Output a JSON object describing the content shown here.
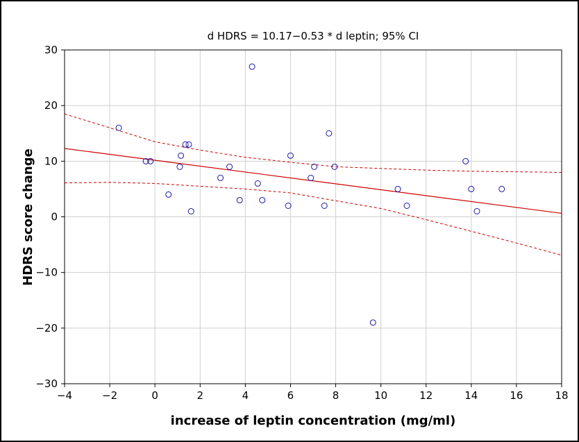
{
  "chart_data": {
    "type": "scatter",
    "title": "d HDRS = 10.17−0.53 * d leptin; 95% CI",
    "xlabel": "increase of leptin concentration (mg/ml)",
    "ylabel": "HDRS score change",
    "xlim": [
      -4,
      18
    ],
    "ylim": [
      -30,
      30
    ],
    "xticks": [
      -4,
      -2,
      0,
      2,
      4,
      6,
      8,
      10,
      12,
      14,
      16,
      18
    ],
    "yticks": [
      -30,
      -20,
      -10,
      0,
      10,
      20,
      30
    ],
    "grid": true,
    "colors": {
      "points": "#1a1aa6",
      "fit": "#cc0000",
      "ci": "#cc0000",
      "grid": "#cfcfcf"
    },
    "points": [
      {
        "x": -1.6,
        "y": 16
      },
      {
        "x": -0.4,
        "y": 10
      },
      {
        "x": -0.2,
        "y": 10
      },
      {
        "x": 0.6,
        "y": 4
      },
      {
        "x": 1.1,
        "y": 9
      },
      {
        "x": 1.15,
        "y": 11
      },
      {
        "x": 1.35,
        "y": 13
      },
      {
        "x": 1.5,
        "y": 13
      },
      {
        "x": 1.6,
        "y": 1
      },
      {
        "x": 2.9,
        "y": 7
      },
      {
        "x": 3.3,
        "y": 9
      },
      {
        "x": 3.75,
        "y": 3
      },
      {
        "x": 4.3,
        "y": 27
      },
      {
        "x": 4.55,
        "y": 6
      },
      {
        "x": 4.75,
        "y": 3
      },
      {
        "x": 5.9,
        "y": 2
      },
      {
        "x": 6.0,
        "y": 11
      },
      {
        "x": 6.9,
        "y": 7
      },
      {
        "x": 7.05,
        "y": 9
      },
      {
        "x": 7.5,
        "y": 2
      },
      {
        "x": 7.7,
        "y": 15
      },
      {
        "x": 7.95,
        "y": 9
      },
      {
        "x": 9.65,
        "y": -19
      },
      {
        "x": 10.75,
        "y": 5
      },
      {
        "x": 11.15,
        "y": 2
      },
      {
        "x": 13.75,
        "y": 10
      },
      {
        "x": 14.0,
        "y": 5
      },
      {
        "x": 14.25,
        "y": 1
      },
      {
        "x": 15.35,
        "y": 5
      }
    ],
    "fit_line": {
      "intercept": 10.17,
      "slope": -0.53
    },
    "ci_upper": [
      {
        "x": -4,
        "y": 18.5
      },
      {
        "x": -2,
        "y": 16.0
      },
      {
        "x": 0,
        "y": 13.5
      },
      {
        "x": 2,
        "y": 12.0
      },
      {
        "x": 4,
        "y": 10.7
      },
      {
        "x": 6,
        "y": 9.8
      },
      {
        "x": 8,
        "y": 9.0
      },
      {
        "x": 10,
        "y": 8.7
      },
      {
        "x": 12,
        "y": 8.4
      },
      {
        "x": 14,
        "y": 8.2
      },
      {
        "x": 16,
        "y": 8.1
      },
      {
        "x": 18,
        "y": 8.0
      }
    ],
    "ci_lower": [
      {
        "x": -4,
        "y": 6.1
      },
      {
        "x": -2,
        "y": 6.2
      },
      {
        "x": 0,
        "y": 6.0
      },
      {
        "x": 2,
        "y": 5.5
      },
      {
        "x": 4,
        "y": 5.0
      },
      {
        "x": 6,
        "y": 4.3
      },
      {
        "x": 8,
        "y": 2.9
      },
      {
        "x": 10,
        "y": 1.5
      },
      {
        "x": 12,
        "y": -0.5
      },
      {
        "x": 14,
        "y": -2.6
      },
      {
        "x": 16,
        "y": -4.7
      },
      {
        "x": 18,
        "y": -6.9
      }
    ]
  }
}
